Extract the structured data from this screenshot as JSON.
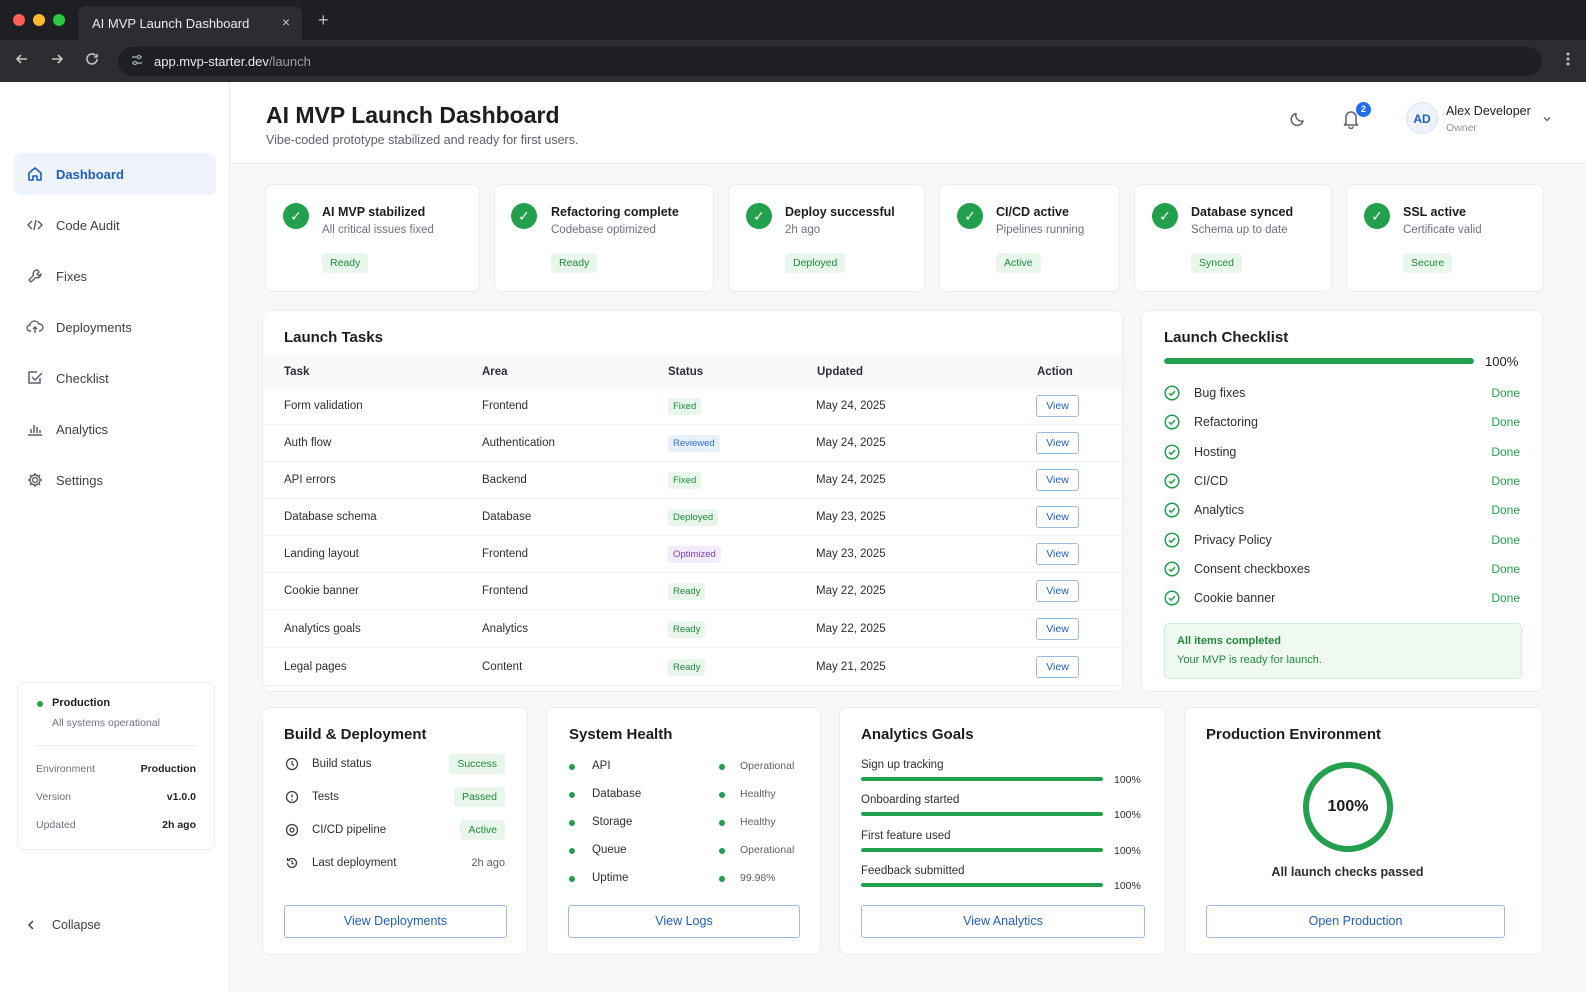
{
  "browser": {
    "tab_title": "AI MVP Launch Dashboard",
    "url_host": "app.mvp-starter.dev",
    "url_path": "/launch",
    "new_tab_glyph": "+",
    "close_glyph": "×"
  },
  "sidebar": {
    "items": [
      {
        "label": "Dashboard",
        "icon": "home-icon",
        "active": true
      },
      {
        "label": "Code Audit",
        "icon": "code-icon"
      },
      {
        "label": "Fixes",
        "icon": "wrench-icon"
      },
      {
        "label": "Deployments",
        "icon": "cloud-upload-icon"
      },
      {
        "label": "Checklist",
        "icon": "checkbox-icon"
      },
      {
        "label": "Analytics",
        "icon": "bar-chart-icon"
      },
      {
        "label": "Settings",
        "icon": "gear-icon"
      }
    ],
    "env": {
      "name": "Production",
      "status": "All systems operational",
      "rows": [
        {
          "label": "Environment",
          "value": "Production"
        },
        {
          "label": "Version",
          "value": "v1.0.0"
        },
        {
          "label": "Updated",
          "value": "2h ago"
        }
      ]
    },
    "collapse_label": "Collapse"
  },
  "header": {
    "title": "AI MVP Launch Dashboard",
    "subtitle": "Vibe-coded prototype stabilized and ready for first users.",
    "notifications": "2",
    "user": {
      "initials": "AD",
      "name": "Alex Developer",
      "role": "Owner"
    }
  },
  "stats": [
    {
      "title": "AI MVP stabilized",
      "sub": "All critical issues fixed",
      "badge": "Ready"
    },
    {
      "title": "Refactoring complete",
      "sub": "Codebase optimized",
      "badge": "Ready"
    },
    {
      "title": "Deploy successful",
      "sub": "2h ago",
      "badge": "Deployed"
    },
    {
      "title": "CI/CD active",
      "sub": "Pipelines running",
      "badge": "Active"
    },
    {
      "title": "Database synced",
      "sub": "Schema up to date",
      "badge": "Synced"
    },
    {
      "title": "SSL active",
      "sub": "Certificate valid",
      "badge": "Secure"
    }
  ],
  "tasks": {
    "title": "Launch Tasks",
    "columns": [
      "Task",
      "Area",
      "Status",
      "Updated",
      "Action"
    ],
    "rows": [
      {
        "task": "Form validation",
        "area": "Frontend",
        "status": "Fixed",
        "tone": "green",
        "updated": "May 24, 2025",
        "action": "View"
      },
      {
        "task": "Auth flow",
        "area": "Authentication",
        "status": "Reviewed",
        "tone": "blue",
        "updated": "May 24, 2025",
        "action": "View"
      },
      {
        "task": "API errors",
        "area": "Backend",
        "status": "Fixed",
        "tone": "green",
        "updated": "May 24, 2025",
        "action": "View"
      },
      {
        "task": "Database schema",
        "area": "Database",
        "status": "Deployed",
        "tone": "green",
        "updated": "May 23, 2025",
        "action": "View"
      },
      {
        "task": "Landing layout",
        "area": "Frontend",
        "status": "Optimized",
        "tone": "purple",
        "updated": "May 23, 2025",
        "action": "View"
      },
      {
        "task": "Cookie banner",
        "area": "Frontend",
        "status": "Ready",
        "tone": "green",
        "updated": "May 22, 2025",
        "action": "View"
      },
      {
        "task": "Analytics goals",
        "area": "Analytics",
        "status": "Ready",
        "tone": "green",
        "updated": "May 22, 2025",
        "action": "View"
      },
      {
        "task": "Legal pages",
        "area": "Content",
        "status": "Ready",
        "tone": "green",
        "updated": "May 21, 2025",
        "action": "View"
      }
    ]
  },
  "checklist": {
    "title": "Launch Checklist",
    "progress": 100,
    "progress_label": "100%",
    "items": [
      {
        "label": "Bug fixes",
        "status": "Done"
      },
      {
        "label": "Refactoring",
        "status": "Done"
      },
      {
        "label": "Hosting",
        "status": "Done"
      },
      {
        "label": "CI/CD",
        "status": "Done"
      },
      {
        "label": "Analytics",
        "status": "Done"
      },
      {
        "label": "Privacy Policy",
        "status": "Done"
      },
      {
        "label": "Consent checkboxes",
        "status": "Done"
      },
      {
        "label": "Cookie banner",
        "status": "Done"
      }
    ],
    "complete_title": "All items completed",
    "complete_sub": "Your MVP is ready for launch."
  },
  "build": {
    "title": "Build & Deployment",
    "rows": [
      {
        "label": "Build status",
        "value": "Success",
        "badge": true
      },
      {
        "label": "Tests",
        "value": "Passed",
        "badge": true
      },
      {
        "label": "CI/CD pipeline",
        "value": "Active",
        "badge": true
      },
      {
        "label": "Last deployment",
        "value": "2h ago",
        "badge": false
      }
    ],
    "button": "View Deployments"
  },
  "health": {
    "title": "System Health",
    "rows": [
      {
        "label": "API",
        "value": "Operational"
      },
      {
        "label": "Database",
        "value": "Healthy"
      },
      {
        "label": "Storage",
        "value": "Healthy"
      },
      {
        "label": "Queue",
        "value": "Operational"
      },
      {
        "label": "Uptime",
        "value": "99.98%"
      }
    ],
    "button": "View Logs"
  },
  "goals": {
    "title": "Analytics Goals",
    "rows": [
      {
        "label": "Sign up tracking",
        "value": 100,
        "pct": "100%"
      },
      {
        "label": "Onboarding started",
        "value": 100,
        "pct": "100%"
      },
      {
        "label": "First feature used",
        "value": 100,
        "pct": "100%"
      },
      {
        "label": "Feedback submitted",
        "value": 100,
        "pct": "100%"
      }
    ],
    "button": "View Analytics"
  },
  "production": {
    "title": "Production Environment",
    "ring_value": 100,
    "ring_label": "100%",
    "caption": "All launch checks passed",
    "button": "Open Production"
  },
  "colors": {
    "accent": "#1f5fbf",
    "success": "#22a04b"
  }
}
